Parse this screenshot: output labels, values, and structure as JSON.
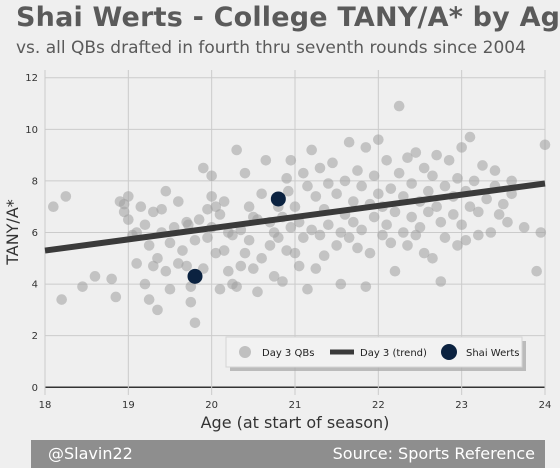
{
  "header": {
    "title": "Shai Werts - College TANY/A* by Age",
    "subtitle": "vs. all QBs drafted in fourth thru seventh rounds since 2004"
  },
  "footer": {
    "handle": "@Slavin22",
    "source": "Source: Sports Reference"
  },
  "colors": {
    "background": "#efefef",
    "grid": "#cbcbcb",
    "points": "#9e9e9e",
    "trend": "#3a3a3a",
    "highlight": "#0b2240",
    "footer_bg": "#8e8e8e"
  },
  "chart_data": {
    "type": "scatter",
    "xlabel": "Age (at start of season)",
    "ylabel": "TANY/A*",
    "xlim": [
      18,
      24
    ],
    "ylim": [
      -0.3,
      12.3
    ],
    "xticks": [
      18,
      19,
      20,
      21,
      22,
      23,
      24
    ],
    "yticks": [
      0,
      2,
      4,
      6,
      8,
      10,
      12
    ],
    "grid": true,
    "legend_position": "bottom-right",
    "legend": [
      "Day 3 QBs",
      "Day 3 (trend)",
      "Shai Werts"
    ],
    "trend": {
      "name": "Day 3 (trend)",
      "x": [
        18,
        24
      ],
      "y": [
        5.3,
        7.9
      ]
    },
    "highlight": {
      "name": "Shai Werts",
      "points": [
        [
          20.8,
          7.3
        ],
        [
          19.8,
          4.3
        ]
      ]
    },
    "series": [
      {
        "name": "Day 3 QBs",
        "points": [
          [
            18.1,
            7.0
          ],
          [
            18.2,
            3.4
          ],
          [
            18.25,
            7.4
          ],
          [
            18.45,
            3.9
          ],
          [
            18.6,
            4.3
          ],
          [
            18.8,
            4.2
          ],
          [
            18.85,
            3.5
          ],
          [
            18.9,
            7.2
          ],
          [
            18.95,
            6.8
          ],
          [
            18.95,
            7.1
          ],
          [
            19.0,
            7.4
          ],
          [
            19.0,
            6.5
          ],
          [
            19.05,
            5.9
          ],
          [
            19.1,
            4.8
          ],
          [
            19.1,
            6.0
          ],
          [
            19.15,
            7.0
          ],
          [
            19.2,
            6.3
          ],
          [
            19.2,
            4.0
          ],
          [
            19.25,
            5.5
          ],
          [
            19.25,
            3.4
          ],
          [
            19.3,
            4.7
          ],
          [
            19.3,
            6.8
          ],
          [
            19.35,
            3.0
          ],
          [
            19.35,
            5.0
          ],
          [
            19.4,
            6.0
          ],
          [
            19.4,
            6.9
          ],
          [
            19.45,
            4.5
          ],
          [
            19.45,
            7.6
          ],
          [
            19.5,
            3.8
          ],
          [
            19.5,
            5.6
          ],
          [
            19.55,
            6.2
          ],
          [
            19.6,
            7.2
          ],
          [
            19.6,
            4.8
          ],
          [
            19.65,
            5.3
          ],
          [
            19.7,
            4.7
          ],
          [
            19.7,
            6.4
          ],
          [
            19.72,
            6.3
          ],
          [
            19.75,
            3.9
          ],
          [
            19.75,
            3.3
          ],
          [
            19.8,
            2.5
          ],
          [
            19.8,
            5.7
          ],
          [
            19.85,
            6.5
          ],
          [
            19.9,
            8.5
          ],
          [
            19.9,
            4.6
          ],
          [
            19.95,
            5.8
          ],
          [
            19.95,
            6.9
          ],
          [
            20.0,
            8.2
          ],
          [
            20.0,
            6.2
          ],
          [
            20.0,
            7.4
          ],
          [
            20.05,
            7.0
          ],
          [
            20.05,
            5.2
          ],
          [
            20.1,
            6.7
          ],
          [
            20.1,
            3.8
          ],
          [
            20.15,
            5.3
          ],
          [
            20.15,
            7.2
          ],
          [
            20.2,
            4.5
          ],
          [
            20.2,
            6.0
          ],
          [
            20.25,
            5.9
          ],
          [
            20.25,
            4.0
          ],
          [
            20.3,
            3.9
          ],
          [
            20.3,
            9.2
          ],
          [
            20.35,
            6.1
          ],
          [
            20.35,
            4.7
          ],
          [
            20.4,
            5.2
          ],
          [
            20.4,
            8.3
          ],
          [
            20.45,
            7.0
          ],
          [
            20.45,
            5.7
          ],
          [
            20.5,
            6.6
          ],
          [
            20.5,
            4.6
          ],
          [
            20.55,
            3.7
          ],
          [
            20.55,
            6.5
          ],
          [
            20.6,
            5.0
          ],
          [
            20.6,
            7.5
          ],
          [
            20.65,
            8.8
          ],
          [
            20.7,
            6.4
          ],
          [
            20.7,
            5.5
          ],
          [
            20.75,
            4.3
          ],
          [
            20.75,
            6.0
          ],
          [
            20.8,
            5.8
          ],
          [
            20.8,
            7.0
          ],
          [
            20.85,
            4.1
          ],
          [
            20.85,
            6.6
          ],
          [
            20.9,
            5.3
          ],
          [
            20.9,
            8.1
          ],
          [
            20.92,
            7.6
          ],
          [
            20.95,
            6.2
          ],
          [
            20.95,
            8.8
          ],
          [
            21.0,
            5.2
          ],
          [
            21.0,
            7.0
          ],
          [
            21.05,
            6.4
          ],
          [
            21.05,
            4.7
          ],
          [
            21.1,
            8.3
          ],
          [
            21.1,
            5.8
          ],
          [
            21.15,
            7.8
          ],
          [
            21.15,
            3.8
          ],
          [
            21.2,
            6.1
          ],
          [
            21.2,
            9.2
          ],
          [
            21.25,
            7.4
          ],
          [
            21.25,
            4.6
          ],
          [
            21.3,
            5.9
          ],
          [
            21.3,
            8.5
          ],
          [
            21.35,
            6.9
          ],
          [
            21.35,
            5.1
          ],
          [
            21.4,
            7.9
          ],
          [
            21.4,
            6.3
          ],
          [
            21.45,
            8.7
          ],
          [
            21.5,
            5.5
          ],
          [
            21.5,
            7.5
          ],
          [
            21.55,
            6.0
          ],
          [
            21.55,
            4.0
          ],
          [
            21.6,
            8.0
          ],
          [
            21.6,
            6.7
          ],
          [
            21.65,
            9.5
          ],
          [
            21.65,
            5.8
          ],
          [
            21.7,
            7.2
          ],
          [
            21.7,
            6.4
          ],
          [
            21.75,
            8.4
          ],
          [
            21.75,
            5.4
          ],
          [
            21.8,
            7.8
          ],
          [
            21.8,
            6.1
          ],
          [
            21.85,
            9.3
          ],
          [
            21.85,
            3.9
          ],
          [
            21.9,
            7.1
          ],
          [
            21.9,
            5.2
          ],
          [
            21.95,
            8.2
          ],
          [
            21.95,
            6.6
          ],
          [
            22.0,
            7.5
          ],
          [
            22.0,
            9.6
          ],
          [
            22.05,
            5.9
          ],
          [
            22.05,
            7.0
          ],
          [
            22.1,
            6.3
          ],
          [
            22.1,
            8.8
          ],
          [
            22.15,
            5.6
          ],
          [
            22.15,
            7.7
          ],
          [
            22.2,
            6.8
          ],
          [
            22.2,
            4.5
          ],
          [
            22.25,
            8.3
          ],
          [
            22.25,
            10.9
          ],
          [
            22.3,
            6.0
          ],
          [
            22.3,
            7.4
          ],
          [
            22.35,
            5.5
          ],
          [
            22.35,
            8.9
          ],
          [
            22.4,
            6.6
          ],
          [
            22.4,
            7.9
          ],
          [
            22.45,
            5.9
          ],
          [
            22.45,
            9.1
          ],
          [
            22.5,
            7.2
          ],
          [
            22.5,
            6.2
          ],
          [
            22.55,
            8.5
          ],
          [
            22.55,
            5.2
          ],
          [
            22.6,
            7.6
          ],
          [
            22.6,
            6.8
          ],
          [
            22.65,
            8.2
          ],
          [
            22.65,
            5.0
          ],
          [
            22.7,
            7.0
          ],
          [
            22.7,
            9.0
          ],
          [
            22.75,
            6.4
          ],
          [
            22.75,
            4.1
          ],
          [
            22.8,
            7.8
          ],
          [
            22.8,
            5.8
          ],
          [
            22.85,
            8.8
          ],
          [
            22.9,
            6.7
          ],
          [
            22.9,
            7.4
          ],
          [
            22.95,
            5.5
          ],
          [
            22.95,
            8.1
          ],
          [
            23.0,
            6.3
          ],
          [
            23.0,
            9.3
          ],
          [
            23.05,
            7.6
          ],
          [
            23.05,
            5.7
          ],
          [
            23.1,
            9.7
          ],
          [
            23.1,
            7.0
          ],
          [
            23.15,
            8.0
          ],
          [
            23.2,
            5.9
          ],
          [
            23.2,
            6.8
          ],
          [
            23.25,
            8.6
          ],
          [
            23.3,
            7.3
          ],
          [
            23.35,
            6.0
          ],
          [
            23.4,
            8.4
          ],
          [
            23.4,
            7.8
          ],
          [
            23.45,
            6.7
          ],
          [
            23.5,
            7.1
          ],
          [
            23.55,
            6.4
          ],
          [
            23.6,
            7.5
          ],
          [
            23.6,
            8.0
          ],
          [
            23.75,
            6.2
          ],
          [
            23.9,
            4.5
          ],
          [
            23.95,
            6.0
          ],
          [
            24.0,
            9.4
          ]
        ]
      }
    ]
  }
}
